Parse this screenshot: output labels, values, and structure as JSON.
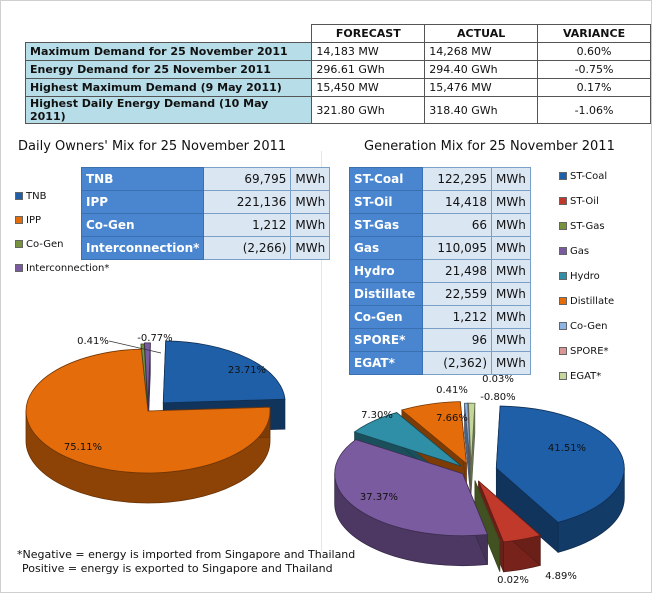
{
  "summary": {
    "headers": [
      "FORECAST",
      "ACTUAL",
      "VARIANCE"
    ],
    "rows": [
      {
        "label": "Maximum Demand for 25 November 2011",
        "forecast": "14,183  MW",
        "actual": "14,268  MW",
        "variance": "0.60%"
      },
      {
        "label": "Energy Demand for 25 November 2011",
        "forecast": "296.61  GWh",
        "actual": "294.40  GWh",
        "variance": "-0.75%"
      },
      {
        "label": "Highest Maximum Demand (9 May 2011)",
        "forecast": "15,450  MW",
        "actual": "15,476  MW",
        "variance": "0.17%"
      },
      {
        "label": "Highest Daily Energy Demand (10 May 2011)",
        "forecast": "321.80  GWh",
        "actual": "318.40  GWh",
        "variance": "-1.06%"
      }
    ]
  },
  "owners": {
    "title": "Daily Owners' Mix for 25 November 2011",
    "table": [
      {
        "name": "TNB",
        "value": "69,795",
        "unit": "MWh"
      },
      {
        "name": "IPP",
        "value": "221,136",
        "unit": "MWh"
      },
      {
        "name": "Co-Gen",
        "value": "1,212",
        "unit": "MWh"
      },
      {
        "name": "Interconnection*",
        "value": "(2,266)",
        "unit": "MWh"
      }
    ]
  },
  "generation": {
    "title": "Generation Mix for 25 November 2011",
    "table": [
      {
        "name": "ST-Coal",
        "value": "122,295",
        "unit": "MWh"
      },
      {
        "name": "ST-Oil",
        "value": "14,418",
        "unit": "MWh"
      },
      {
        "name": "ST-Gas",
        "value": "66",
        "unit": "MWh"
      },
      {
        "name": "Gas",
        "value": "110,095",
        "unit": "MWh"
      },
      {
        "name": "Hydro",
        "value": "21,498",
        "unit": "MWh"
      },
      {
        "name": "Distillate",
        "value": "22,559",
        "unit": "MWh"
      },
      {
        "name": "Co-Gen",
        "value": "1,212",
        "unit": "MWh"
      },
      {
        "name": "SPORE*",
        "value": "96",
        "unit": "MWh"
      },
      {
        "name": "EGAT*",
        "value": "(2,362)",
        "unit": "MWh"
      }
    ]
  },
  "note": {
    "line1": "*Negative = energy is imported from Singapore and Thailand",
    "line2": "Positive = energy is exported to Singapore and Thailand"
  },
  "chart_data": [
    {
      "type": "pie",
      "title": "Daily Owners' Mix for 25 November 2011",
      "labels": [
        "TNB",
        "IPP",
        "Co-Gen",
        "Interconnection*"
      ],
      "values": [
        23.71,
        75.11,
        0.41,
        -0.77
      ],
      "data_labels": [
        "23.71%",
        "75.11%",
        "0.41%",
        "-0.77%"
      ],
      "colors": [
        "#1f5fa8",
        "#e46c0a",
        "#77933c",
        "#7b5ba0"
      ],
      "legend": "left"
    },
    {
      "type": "pie",
      "title": "Generation Mix for 25 November 2011",
      "labels": [
        "ST-Coal",
        "ST-Oil",
        "ST-Gas",
        "Gas",
        "Hydro",
        "Distillate",
        "Co-Gen",
        "SPORE*",
        "EGAT*"
      ],
      "values": [
        41.51,
        4.89,
        0.02,
        37.37,
        7.3,
        7.66,
        0.41,
        0.03,
        -0.8
      ],
      "data_labels": [
        "41.51%",
        "4.89%",
        "0.02%",
        "37.37%",
        "7.30%",
        "7.66%",
        "0.41%",
        "0.03%",
        "-0.80%"
      ],
      "colors": [
        "#1f5fa8",
        "#c0392b",
        "#77933c",
        "#7b5ba0",
        "#2f8fa6",
        "#e46c0a",
        "#8eb4e3",
        "#d99694",
        "#c3d69b"
      ],
      "legend": "right"
    }
  ]
}
